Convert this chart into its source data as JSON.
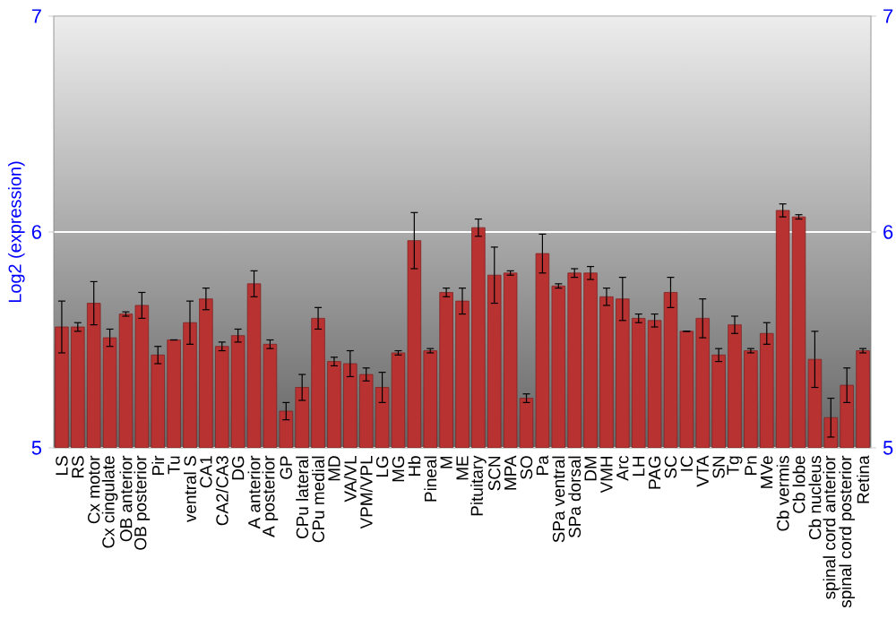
{
  "chart_data": {
    "type": "bar",
    "ylabel": "Log2 (expression)",
    "categories": [
      "LS",
      "RS",
      "Cx motor",
      "Cx cingulate",
      "OB anterior",
      "OB posterior",
      "Pir",
      "Tu",
      "ventral S",
      "CA1",
      "CA2/CA3",
      "DG",
      "A anterior",
      "A posterior",
      "GP",
      "CPu lateral",
      "CPu medial",
      "MD",
      "VA/VL",
      "VPM/VPL",
      "LG",
      "MG",
      "Hb",
      "Pineal",
      "M",
      "ME",
      "Pituitary",
      "SCN",
      "MPA",
      "SO",
      "Pa",
      "SPa ventral",
      "SPa dorsal",
      "DM",
      "VMH",
      "Arc",
      "LH",
      "PAG",
      "SC",
      "IC",
      "VTA",
      "SN",
      "Tg",
      "Pn",
      "MVe",
      "Cb vermis",
      "Cb lobe",
      "Cb nucleus",
      "spinal cord anterior",
      "spinal cord posterior",
      "Retina"
    ],
    "values": [
      5.56,
      5.56,
      5.67,
      5.51,
      5.62,
      5.66,
      5.43,
      5.5,
      5.58,
      5.69,
      5.47,
      5.52,
      5.76,
      5.48,
      5.17,
      5.28,
      5.6,
      5.4,
      5.39,
      5.34,
      5.28,
      5.44,
      5.96,
      5.45,
      5.72,
      5.68,
      6.02,
      5.8,
      5.81,
      5.23,
      5.9,
      5.75,
      5.81,
      5.81,
      5.7,
      5.69,
      5.6,
      5.59,
      5.72,
      5.54,
      5.6,
      5.43,
      5.57,
      5.45,
      5.53,
      6.1,
      6.07,
      5.41,
      5.14,
      5.29,
      5.45
    ],
    "errors": [
      0.12,
      0.02,
      0.1,
      0.04,
      0.01,
      0.06,
      0.04,
      null,
      0.1,
      0.05,
      0.02,
      0.03,
      0.06,
      0.02,
      0.04,
      0.06,
      0.05,
      0.02,
      0.06,
      0.03,
      0.07,
      0.01,
      0.13,
      0.01,
      0.02,
      0.06,
      0.04,
      0.13,
      0.01,
      0.02,
      0.09,
      0.01,
      0.02,
      0.03,
      0.04,
      0.1,
      0.02,
      0.03,
      0.07,
      null,
      0.09,
      0.03,
      0.04,
      0.01,
      0.05,
      0.03,
      0.01,
      0.13,
      0.09,
      0.08,
      0.01
    ],
    "color": "#b83232",
    "ylim": [
      5,
      7
    ],
    "yticks": [
      5,
      6,
      7
    ],
    "y2lim": [
      5,
      7
    ],
    "y2ticks": [
      5,
      6,
      7
    ],
    "grid": "y"
  }
}
